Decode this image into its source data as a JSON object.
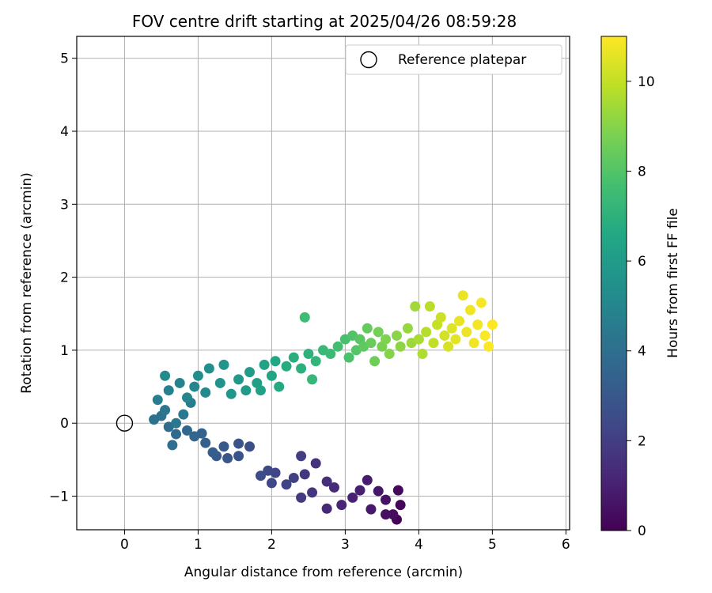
{
  "chart_data": {
    "type": "scatter",
    "title": "FOV centre drift starting at 2025/04/26 08:59:28",
    "xlabel": "Angular distance from reference (arcmin)",
    "ylabel": "Rotation from reference (arcmin)",
    "xlim": [
      -0.65,
      6.05
    ],
    "ylim": [
      -1.46,
      5.3
    ],
    "xticks": [
      "0",
      "1",
      "2",
      "3",
      "4",
      "5",
      "6"
    ],
    "yticks": [
      "−1",
      "0",
      "1",
      "2",
      "3",
      "4",
      "5"
    ],
    "grid": true,
    "legend": {
      "placement": "top-right",
      "entries": [
        "Reference platepar"
      ]
    },
    "colorbar": {
      "label": "Hours from first FF file",
      "range": [
        0,
        11
      ],
      "ticks": [
        "0",
        "2",
        "4",
        "6",
        "8",
        "10"
      ],
      "colormap": "viridis"
    },
    "reference_point": {
      "x": 0,
      "y": 0
    },
    "series": [
      {
        "x_y_hours": [
          [
            3.7,
            -1.32,
            0.05
          ],
          [
            3.75,
            -1.12,
            0.15
          ],
          [
            3.72,
            -0.92,
            0.25
          ],
          [
            3.65,
            -1.25,
            0.35
          ],
          [
            3.55,
            -1.25,
            0.45
          ],
          [
            3.55,
            -1.05,
            0.55
          ],
          [
            3.45,
            -0.93,
            0.65
          ],
          [
            3.35,
            -1.18,
            0.75
          ],
          [
            3.3,
            -0.78,
            0.85
          ],
          [
            3.2,
            -0.92,
            0.95
          ],
          [
            3.1,
            -1.02,
            1.05
          ],
          [
            2.95,
            -1.12,
            1.15
          ],
          [
            2.75,
            -1.17,
            1.25
          ],
          [
            2.85,
            -0.88,
            1.35
          ],
          [
            2.75,
            -0.8,
            1.45
          ],
          [
            2.6,
            -0.55,
            1.55
          ],
          [
            2.55,
            -0.95,
            1.65
          ],
          [
            2.45,
            -0.7,
            1.75
          ],
          [
            2.4,
            -1.02,
            1.85
          ],
          [
            2.4,
            -0.45,
            1.95
          ],
          [
            2.3,
            -0.75,
            2.05
          ],
          [
            2.2,
            -0.84,
            2.15
          ],
          [
            2.05,
            -0.68,
            2.25
          ],
          [
            2.0,
            -0.82,
            2.35
          ],
          [
            1.95,
            -0.65,
            2.45
          ],
          [
            1.85,
            -0.72,
            2.55
          ],
          [
            1.7,
            -0.32,
            2.65
          ],
          [
            1.55,
            -0.28,
            2.75
          ],
          [
            1.55,
            -0.45,
            2.85
          ],
          [
            1.4,
            -0.48,
            2.95
          ],
          [
            1.35,
            -0.32,
            3.05
          ],
          [
            1.25,
            -0.45,
            3.15
          ],
          [
            1.2,
            -0.4,
            3.25
          ],
          [
            1.1,
            -0.27,
            3.35
          ],
          [
            1.05,
            -0.14,
            3.45
          ],
          [
            0.95,
            -0.18,
            3.55
          ],
          [
            0.85,
            -0.1,
            3.65
          ],
          [
            0.7,
            -0.15,
            3.75
          ],
          [
            0.6,
            -0.05,
            3.85
          ],
          [
            0.65,
            -0.3,
            3.95
          ],
          [
            0.5,
            0.1,
            4.05
          ],
          [
            0.4,
            0.05,
            4.15
          ],
          [
            0.55,
            0.18,
            4.25
          ],
          [
            0.7,
            0.0,
            4.35
          ],
          [
            0.8,
            0.12,
            4.45
          ],
          [
            0.9,
            0.28,
            4.55
          ],
          [
            0.45,
            0.32,
            4.65
          ],
          [
            0.6,
            0.45,
            4.75
          ],
          [
            0.75,
            0.55,
            4.85
          ],
          [
            0.85,
            0.35,
            4.95
          ],
          [
            0.95,
            0.5,
            5.05
          ],
          [
            1.1,
            0.42,
            5.15
          ],
          [
            0.55,
            0.65,
            5.25
          ],
          [
            1.0,
            0.65,
            5.35
          ],
          [
            1.15,
            0.75,
            5.45
          ],
          [
            1.3,
            0.55,
            5.55
          ],
          [
            1.35,
            0.8,
            5.65
          ],
          [
            1.45,
            0.4,
            5.75
          ],
          [
            1.55,
            0.6,
            5.85
          ],
          [
            1.65,
            0.45,
            5.95
          ],
          [
            1.7,
            0.7,
            6.05
          ],
          [
            1.8,
            0.55,
            6.15
          ],
          [
            1.85,
            0.45,
            6.25
          ],
          [
            1.9,
            0.8,
            6.35
          ],
          [
            2.0,
            0.65,
            6.45
          ],
          [
            2.05,
            0.85,
            6.55
          ],
          [
            2.1,
            0.5,
            6.65
          ],
          [
            2.2,
            0.78,
            6.75
          ],
          [
            2.3,
            0.9,
            6.85
          ],
          [
            2.4,
            0.75,
            6.95
          ],
          [
            2.5,
            0.95,
            7.05
          ],
          [
            2.6,
            0.85,
            7.15
          ],
          [
            2.55,
            0.6,
            7.25
          ],
          [
            2.7,
            1.0,
            7.35
          ],
          [
            2.8,
            0.95,
            7.45
          ],
          [
            2.45,
            1.45,
            7.55
          ],
          [
            2.9,
            1.05,
            7.65
          ],
          [
            3.0,
            1.15,
            7.75
          ],
          [
            3.05,
            0.9,
            7.85
          ],
          [
            3.1,
            1.2,
            7.95
          ],
          [
            3.15,
            1.0,
            8.05
          ],
          [
            3.2,
            1.15,
            8.15
          ],
          [
            3.25,
            1.05,
            8.25
          ],
          [
            3.3,
            1.3,
            8.35
          ],
          [
            3.35,
            1.1,
            8.45
          ],
          [
            3.4,
            0.85,
            8.55
          ],
          [
            3.45,
            1.25,
            8.65
          ],
          [
            3.5,
            1.05,
            8.75
          ],
          [
            3.55,
            1.15,
            8.85
          ],
          [
            3.6,
            0.95,
            8.95
          ],
          [
            3.7,
            1.2,
            9.05
          ],
          [
            3.75,
            1.05,
            9.15
          ],
          [
            3.85,
            1.3,
            9.25
          ],
          [
            3.9,
            1.1,
            9.35
          ],
          [
            3.95,
            1.6,
            9.45
          ],
          [
            4.0,
            1.15,
            9.55
          ],
          [
            4.05,
            0.95,
            9.65
          ],
          [
            4.1,
            1.25,
            9.75
          ],
          [
            4.15,
            1.6,
            9.85
          ],
          [
            4.2,
            1.1,
            9.95
          ],
          [
            4.25,
            1.35,
            10.05
          ],
          [
            4.3,
            1.45,
            10.15
          ],
          [
            4.35,
            1.2,
            10.25
          ],
          [
            4.4,
            1.05,
            10.35
          ],
          [
            4.45,
            1.3,
            10.45
          ],
          [
            4.5,
            1.15,
            10.55
          ],
          [
            4.55,
            1.4,
            10.6
          ],
          [
            4.6,
            1.75,
            10.65
          ],
          [
            4.65,
            1.25,
            10.7
          ],
          [
            4.7,
            1.55,
            10.75
          ],
          [
            4.75,
            1.1,
            10.8
          ],
          [
            4.8,
            1.35,
            10.85
          ],
          [
            4.85,
            1.65,
            10.9
          ],
          [
            4.9,
            1.2,
            10.95
          ],
          [
            4.95,
            1.05,
            10.98
          ],
          [
            5.0,
            1.35,
            11.0
          ]
        ]
      }
    ]
  }
}
